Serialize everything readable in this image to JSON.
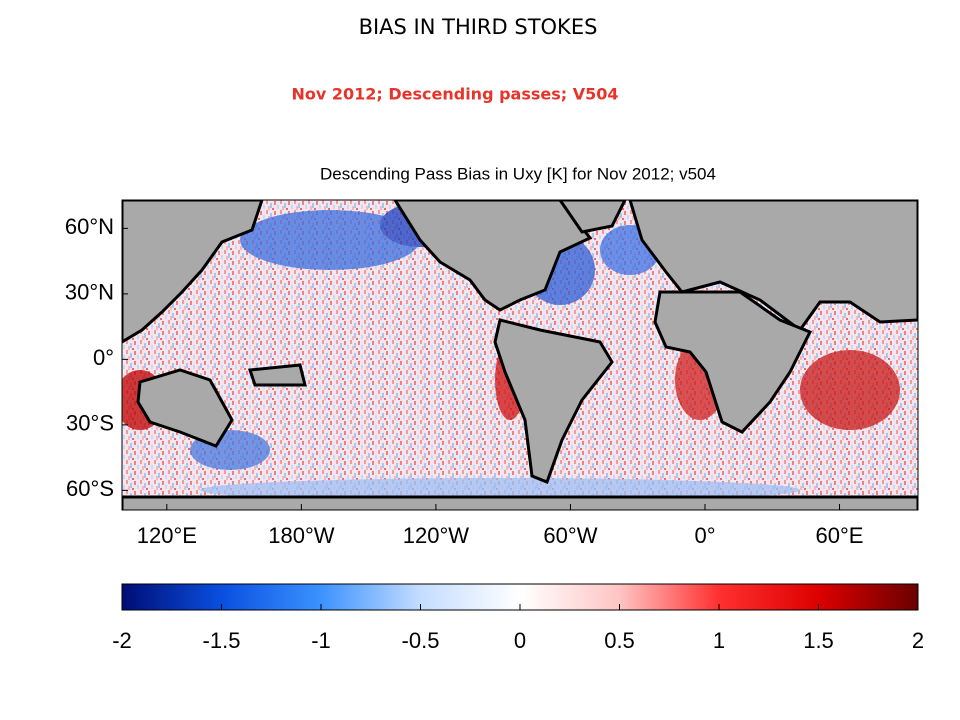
{
  "slide_title": "BIAS IN THIRD STOKES",
  "slide_subtitle": "Nov 2012; Descending passes; V504",
  "chart_data": {
    "type": "map",
    "title": "Descending Pass Bias in Uxy [K] for Nov 2012; v504",
    "xlim": [
      100,
      455
    ],
    "xticks": [
      {
        "value": 120,
        "label": "120°E"
      },
      {
        "value": 180,
        "label": "180°W"
      },
      {
        "value": 240,
        "label": "120°W"
      },
      {
        "value": 300,
        "label": "60°W"
      },
      {
        "value": 360,
        "label": "0°"
      },
      {
        "value": 420,
        "label": "60°E"
      }
    ],
    "ylim": [
      -69,
      73
    ],
    "yticks": [
      {
        "value": 60,
        "label": "60°N"
      },
      {
        "value": 30,
        "label": "30°N"
      },
      {
        "value": 0,
        "label": "0°"
      },
      {
        "value": -30,
        "label": "30°S"
      },
      {
        "value": -60,
        "label": "60°S"
      }
    ],
    "land_color": "#a9a9a9",
    "colorbar": {
      "lim": [
        -2,
        2
      ],
      "ticks": [
        -2,
        -1.5,
        -1,
        -0.5,
        0,
        0.5,
        1,
        1.5,
        2
      ],
      "colors": [
        "#000d75",
        "#0a4fe0",
        "#3c92ff",
        "#c4ddff",
        "#ffffff",
        "#ffc4c4",
        "#ff3030",
        "#dd0000",
        "#6a0000"
      ]
    }
  }
}
